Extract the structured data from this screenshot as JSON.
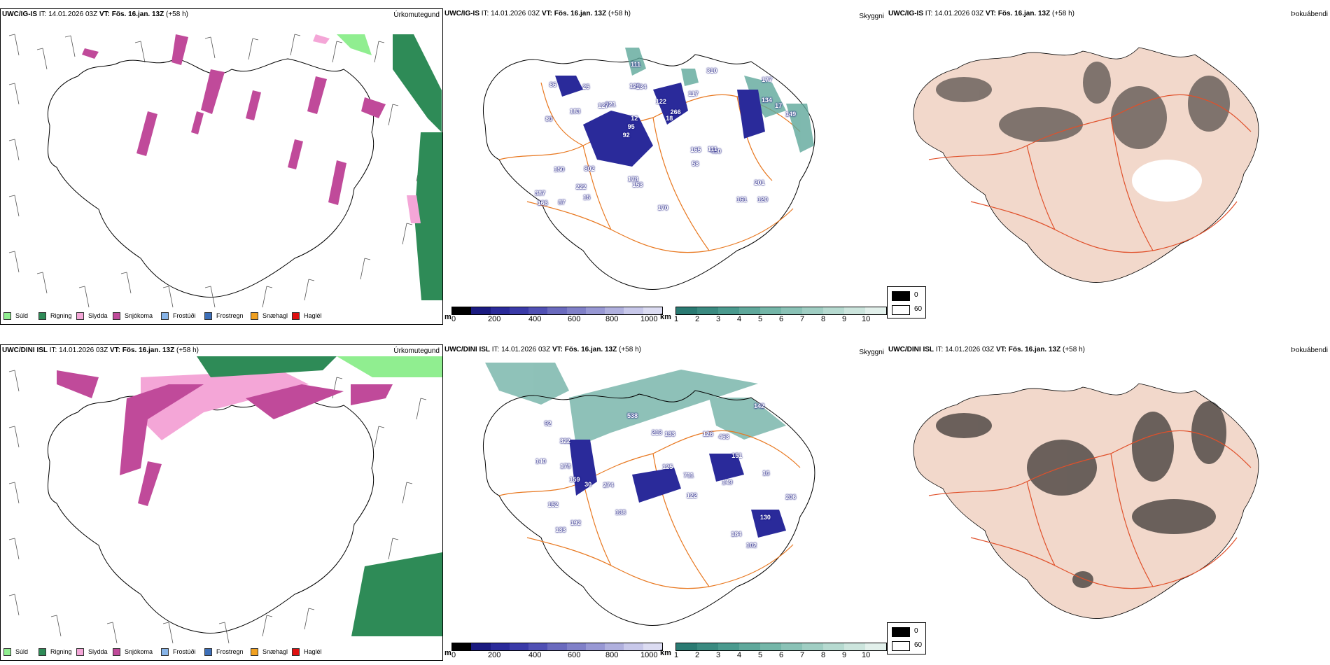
{
  "rows": [
    {
      "model": "UWC/IG-IS",
      "it_label": "IT:",
      "it_value": "14.01.2026 03Z",
      "vt_label": "VT:",
      "vt_value": "Fös. 16.jan. 13Z",
      "lead": "(+58 h)",
      "precip_title": "Úrkomutegund",
      "fog_title": "Þokuábendi"
    },
    {
      "model": "UWC/DINI ISL",
      "it_label": "IT:",
      "it_value": "14.01.2026 03Z",
      "vt_label": "VT:",
      "vt_value": "Fös. 16.jan. 13Z",
      "lead": "(+58 h)",
      "precip_title": "Úrkomutegund",
      "fog_title": "Þokuábendi"
    }
  ],
  "visibility_title": "Skyggni",
  "precip_legend": [
    {
      "label": "Súld",
      "color": "#90ee90"
    },
    {
      "label": "Rigning",
      "color": "#2e8b57"
    },
    {
      "label": "Slydda",
      "color": "#f4a6d7"
    },
    {
      "label": "Snjókoma",
      "color": "#c04a9a"
    },
    {
      "label": "Frostúði",
      "color": "#87b4e8"
    },
    {
      "label": "Frostregn",
      "color": "#3d6fb8"
    },
    {
      "label": "Snæhagl",
      "color": "#f0a020"
    },
    {
      "label": "Haglél",
      "color": "#e01010"
    }
  ],
  "ceiling_scale": {
    "unit": "m",
    "ticks": [
      "0",
      "200",
      "400",
      "600",
      "800",
      "1000"
    ],
    "colors": [
      "#000000",
      "#1a1a80",
      "#2a2a9a",
      "#3a3aa8",
      "#5050b4",
      "#6a6abe",
      "#8080c8",
      "#9898d4",
      "#b0b0de",
      "#c8c8ea",
      "#dcdcf2"
    ]
  },
  "visibility_scale": {
    "unit": "km",
    "ticks": [
      "1",
      "2",
      "3",
      "4",
      "5",
      "6",
      "7",
      "8",
      "9",
      "10"
    ],
    "colors": [
      "#2a7a72",
      "#3a8a80",
      "#4a9a8e",
      "#5fa89b",
      "#74b6a8",
      "#8ac2b6",
      "#a0cec3",
      "#b6dad0",
      "#cce5dd",
      "#e2f0eb"
    ]
  },
  "fog_legend": [
    {
      "label": "0",
      "color": "#000000"
    },
    {
      "label": "60",
      "color": "#ffffff"
    }
  ],
  "ceiling_labels_top": [
    "120",
    "80",
    "177",
    "92",
    "117",
    "87",
    "129",
    "122",
    "150",
    "221",
    "387",
    "222",
    "134",
    "266",
    "450",
    "86",
    "111",
    "149",
    "165",
    "134",
    "95",
    "178",
    "12",
    "25",
    "310",
    "802",
    "161",
    "201",
    "111",
    "170",
    "127",
    "183",
    "58",
    "15",
    "17",
    "18",
    "166",
    "153"
  ],
  "ceiling_labels_bottom": [
    "102",
    "159",
    "122",
    "92",
    "130",
    "322",
    "192",
    "274",
    "463",
    "213",
    "126",
    "184",
    "138",
    "538",
    "711",
    "152",
    "149",
    "125",
    "140",
    "133",
    "142",
    "133",
    "151",
    "206",
    "16",
    "178",
    "30"
  ]
}
